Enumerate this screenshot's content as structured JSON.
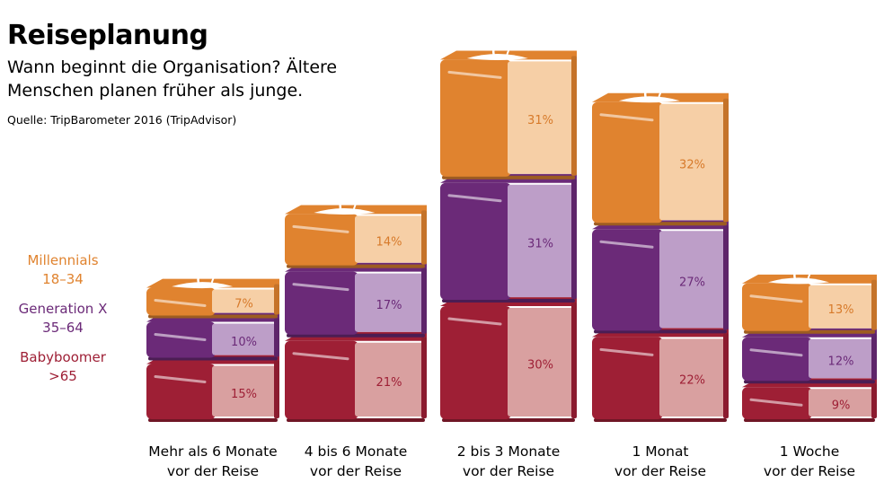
{
  "header": {
    "title": "Reiseplanung",
    "subtitle": "Wann beginnt die Organisation? Ältere Menschen planen früher als junge.",
    "source": "Quelle: TripBarometer 2016 (TripAdvisor)"
  },
  "legend": [
    {
      "name": "Millennials",
      "range": "18–34",
      "color": "#e0832f"
    },
    {
      "name": "Generation X",
      "range": "35–64",
      "color": "#6b2a78"
    },
    {
      "name": "Babyboomer",
      "range": ">65",
      "color": "#9e1f35"
    }
  ],
  "chart_data": {
    "type": "bar",
    "stacked": true,
    "title": "Reiseplanung",
    "categories": [
      [
        "Mehr als 6 Monate",
        "vor der Reise"
      ],
      [
        "4 bis 6 Monate",
        "vor der Reise"
      ],
      [
        "2 bis 3 Monate",
        "vor der Reise"
      ],
      [
        "1 Monat",
        "vor der Reise"
      ],
      [
        "1 Woche",
        "vor der Reise"
      ]
    ],
    "series": [
      {
        "name": "Babyboomer >65",
        "values": [
          15,
          21,
          30,
          22,
          9
        ],
        "labels": [
          "15%",
          "21%",
          "30%",
          "22%",
          "9%"
        ],
        "color": "#9e1f35",
        "page_color": "#d9a0a0",
        "text_color": "#9e1f35"
      },
      {
        "name": "Generation X 35–64",
        "values": [
          10,
          17,
          31,
          27,
          12
        ],
        "labels": [
          "10%",
          "17%",
          "31%",
          "27%",
          "12%"
        ],
        "color": "#6b2a78",
        "page_color": "#bd9ec8",
        "text_color": "#6b2a78"
      },
      {
        "name": "Millennials 18–34",
        "values": [
          7,
          14,
          31,
          32,
          13
        ],
        "labels": [
          "7%",
          "14%",
          "31%",
          "32%",
          "13%"
        ],
        "color": "#e0832f",
        "page_color": "#f6cfa6",
        "text_color": "#d77a2a"
      }
    ],
    "top_icon": "palm-island-icon"
  }
}
